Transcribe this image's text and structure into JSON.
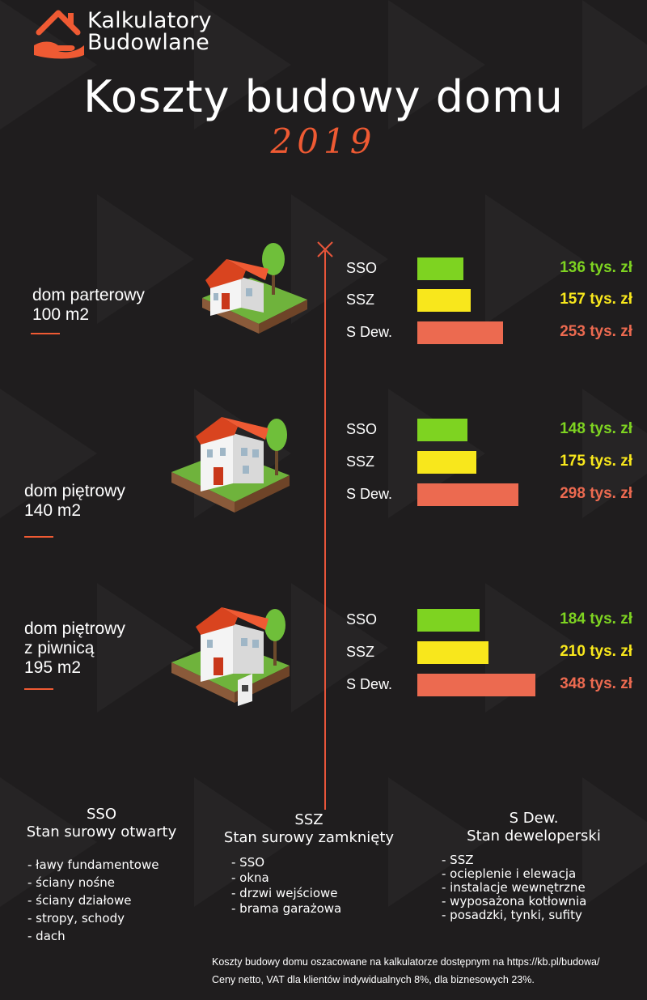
{
  "header": {
    "brand_line1": "Kalkulatory",
    "brand_line2": "Budowlane",
    "title": "Koszty budowy domu",
    "year": "2019"
  },
  "colors": {
    "background": "#1f1d1e",
    "accent": "#ef5a33",
    "sso": "#7ed321",
    "ssz": "#f8e71c",
    "sdew": "#ec6a50"
  },
  "houses": [
    {
      "label_lines": [
        "dom parterowy",
        "100 m2"
      ],
      "icon": "bungalow-house-icon"
    },
    {
      "label_lines": [
        "dom piętrowy",
        "140 m2"
      ],
      "icon": "two-storey-house-icon"
    },
    {
      "label_lines": [
        "dom piętrowy",
        "z piwnicą",
        "195 m2"
      ],
      "icon": "house-with-basement-icon"
    }
  ],
  "chart_data": {
    "type": "bar",
    "orientation": "horizontal",
    "title": "Koszty budowy domu",
    "unit": "tys. zł",
    "categories": [
      "SSO",
      "SSZ",
      "S Dew."
    ],
    "groups": [
      {
        "name": "dom parterowy 100 m2",
        "values": [
          136,
          157,
          253
        ],
        "labels": [
          "136 tys. zł",
          "157 tys. zł",
          "253 tys. zł"
        ]
      },
      {
        "name": "dom piętrowy 140 m2",
        "values": [
          148,
          175,
          298
        ],
        "labels": [
          "148 tys. zł",
          "175 tys. zł",
          "298 tys. zł"
        ]
      },
      {
        "name": "dom piętrowy z piwnicą 195 m2",
        "values": [
          184,
          210,
          348
        ],
        "labels": [
          "184 tys. zł",
          "210 tys. zł",
          "348 tys. zł"
        ]
      }
    ]
  },
  "legend": [
    {
      "abbr": "SSO",
      "name": "Stan surowy otwarty",
      "items": [
        "- ławy fundamentowe",
        "- ściany nośne",
        "- ściany działowe",
        "- stropy, schody",
        "- dach"
      ]
    },
    {
      "abbr": "SSZ",
      "name": "Stan surowy zamknięty",
      "items": [
        "- SSO",
        "- okna",
        "- drzwi wejściowe",
        "- brama garażowa"
      ]
    },
    {
      "abbr": "S Dew.",
      "name": "Stan deweloperski",
      "items": [
        "- SSZ",
        "- ocieplenie i elewacja",
        "- instalacje wewnętrzne",
        "- wyposażona kotłownia",
        "- posadzki, tynki, sufity"
      ]
    }
  ],
  "footer": {
    "line1": "Koszty budowy domu oszacowane na kalkulatorze dostępnym na https://kb.pl/budowa/",
    "line2": "Ceny netto, VAT dla klientów indywidualnych 8%, dla biznesowych 23%."
  }
}
